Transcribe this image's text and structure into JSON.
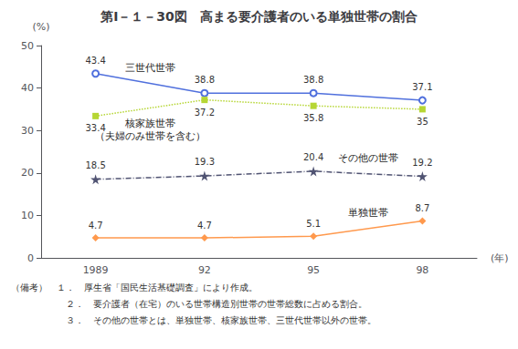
{
  "chart_data": {
    "type": "line",
    "title": "第Ⅰ－１－30図　高まる要介護者のいる単独世帯の割合",
    "categories": [
      "1989",
      "92",
      "95",
      "98"
    ],
    "series": [
      {
        "name": "三世代世帯",
        "values": [
          43.4,
          38.8,
          38.8,
          37.1
        ],
        "marker": "circle",
        "line_style": "solid"
      },
      {
        "name": "核家族世帯（夫婦のみ世帯を含む）",
        "values": [
          33.4,
          37.2,
          35.8,
          35.0
        ],
        "marker": "square",
        "line_style": "dotted"
      },
      {
        "name": "その他の世帯",
        "values": [
          18.5,
          19.3,
          20.4,
          19.2
        ],
        "marker": "star",
        "line_style": "dashdot"
      },
      {
        "name": "単独世帯",
        "values": [
          4.7,
          4.7,
          5.1,
          8.7
        ],
        "marker": "diamond",
        "line_style": "solid"
      }
    ],
    "ylabel": "(%)",
    "xlabel": "(年)",
    "ylim": [
      0,
      50
    ],
    "yticks": [
      0,
      10,
      20,
      30,
      40,
      50
    ],
    "grid": false,
    "data_labels": true,
    "notes": [
      "（備考）　１．　厚生省「国民生活基礎調査」により作成。",
      "　　　　　　２．　要介護者（在宅）のいる世帯構造別世帯の世帯総数に占める割合。",
      "　　　　　　３．　その他の世帯とは、単独世帯、核家族世帯、三世代世帯以外の世帯。"
    ]
  }
}
